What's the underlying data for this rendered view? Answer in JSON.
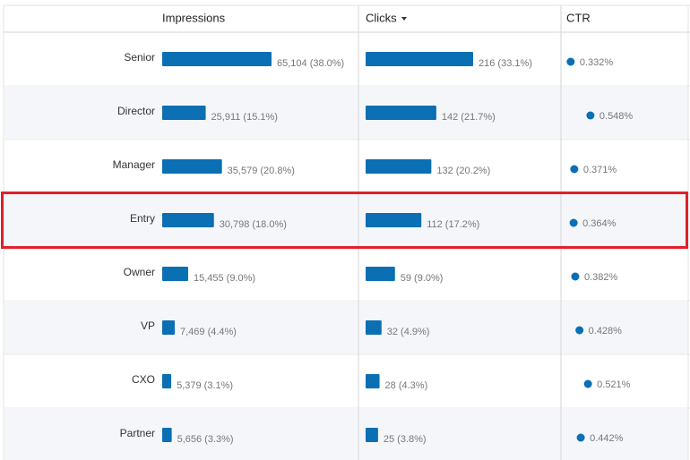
{
  "table": {
    "headers": [
      "Impressions",
      "Clicks",
      "CTR"
    ],
    "rows": [
      {
        "label": "Senior",
        "impressions": 65104,
        "impressions_label": "65,104 (38.0%)",
        "clicks": 216,
        "clicks_label": "216 (33.1%)",
        "ctr": 0.332,
        "ctr_label": "0.332%"
      },
      {
        "label": "Director",
        "impressions": 25911,
        "impressions_label": "25,911 (15.1%)",
        "clicks": 142,
        "clicks_label": "142 (21.7%)",
        "ctr": 0.548,
        "ctr_label": "0.548%"
      },
      {
        "label": "Manager",
        "impressions": 35579,
        "impressions_label": "35,579 (20.8%)",
        "clicks": 132,
        "clicks_label": "132 (20.2%)",
        "ctr": 0.371,
        "ctr_label": "0.371%"
      },
      {
        "label": "Entry",
        "impressions": 30798,
        "impressions_label": "30,798 (18.0%)",
        "clicks": 112,
        "clicks_label": "112 (17.2%)",
        "ctr": 0.364,
        "ctr_label": "0.364%"
      },
      {
        "label": "Owner",
        "impressions": 15455,
        "impressions_label": "15,455 (9.0%)",
        "clicks": 59,
        "clicks_label": "59 (9.0%)",
        "ctr": 0.382,
        "ctr_label": "0.382%"
      },
      {
        "label": "VP",
        "impressions": 7469,
        "impressions_label": "7,469 (4.4%)",
        "clicks": 32,
        "clicks_label": "32 (4.9%)",
        "ctr": 0.428,
        "ctr_label": "0.428%"
      },
      {
        "label": "CXO",
        "impressions": 5379,
        "impressions_label": "5,379 (3.1%)",
        "clicks": 28,
        "clicks_label": "28 (4.3%)",
        "ctr": 0.521,
        "ctr_label": "0.521%"
      },
      {
        "label": "Partner",
        "impressions": 5656,
        "impressions_label": "5,656 (3.3%)",
        "clicks": 25,
        "clicks_label": "25 (3.8%)",
        "ctr": 0.442,
        "ctr_label": "0.442%"
      }
    ],
    "highlighted_row": 3,
    "bar_color": "#0a6fb3"
  }
}
